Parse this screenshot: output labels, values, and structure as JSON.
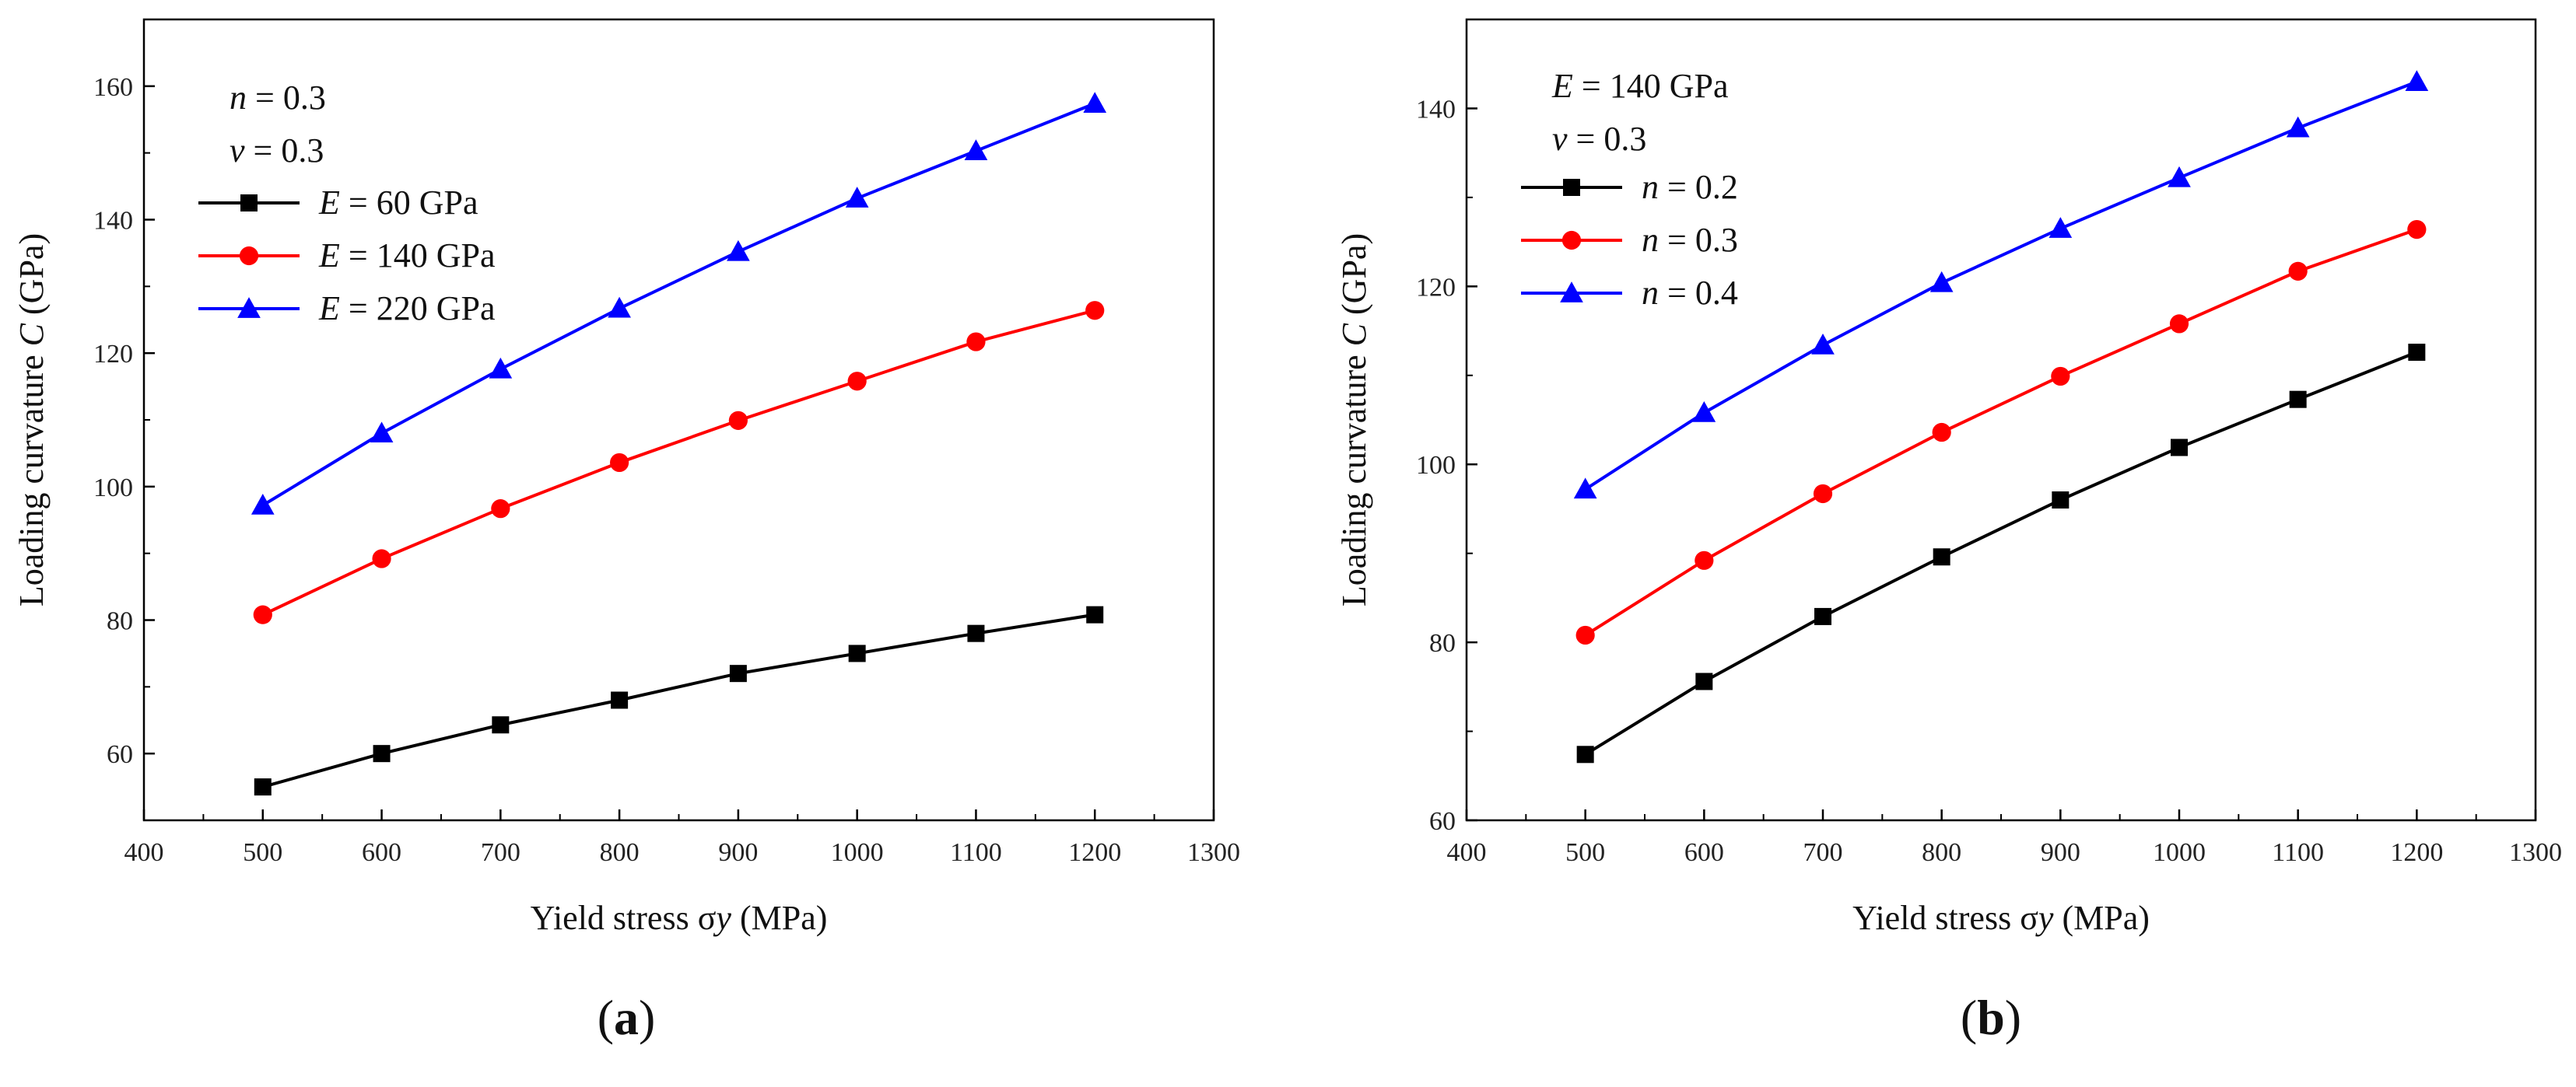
{
  "chart_data": [
    {
      "type": "line",
      "panel_label": "(a)",
      "xlabel": "Yield stress σy (MPa)",
      "ylabel": "Loading curvature C (GPa)",
      "xlim": [
        400,
        1300
      ],
      "ylim": [
        50,
        170
      ],
      "xticks": [
        400,
        500,
        600,
        700,
        800,
        900,
        1000,
        1100,
        1200,
        1300
      ],
      "yticks": [
        60,
        80,
        100,
        120,
        140,
        160
      ],
      "annotations": [
        "n = 0.3",
        "ν = 0.3"
      ],
      "legend_position": "top-left",
      "x": [
        500,
        600,
        700,
        800,
        900,
        1000,
        1100,
        1200
      ],
      "series": [
        {
          "name": "E = 60 GPa",
          "color": "#000000",
          "marker": "square",
          "values": [
            55.0,
            60.0,
            64.3,
            68.0,
            72.0,
            75.0,
            78.0,
            80.8
          ]
        },
        {
          "name": "E = 140 GPa",
          "color": "#ff0000",
          "marker": "circle",
          "values": [
            80.8,
            89.2,
            96.7,
            103.6,
            109.9,
            115.8,
            121.7,
            126.4
          ]
        },
        {
          "name": "E = 220 GPa",
          "color": "#0000ff",
          "marker": "triangle",
          "values": [
            97.2,
            108.0,
            117.6,
            126.7,
            135.2,
            143.2,
            150.3,
            157.4
          ]
        }
      ]
    },
    {
      "type": "line",
      "panel_label": "(b)",
      "xlabel": "Yield stress σy (MPa)",
      "ylabel": "Loading curvature C (GPa)",
      "xlim": [
        400,
        1300
      ],
      "ylim": [
        60,
        150
      ],
      "xticks": [
        400,
        500,
        600,
        700,
        800,
        900,
        1000,
        1100,
        1200,
        1300
      ],
      "yticks": [
        60,
        80,
        100,
        120,
        140
      ],
      "annotations": [
        "E = 140 GPa",
        "ν = 0.3"
      ],
      "legend_position": "top-left",
      "x": [
        500,
        600,
        700,
        800,
        900,
        1000,
        1100,
        1200
      ],
      "series": [
        {
          "name": "n = 0.2",
          "color": "#000000",
          "marker": "square",
          "values": [
            67.4,
            75.6,
            82.9,
            89.6,
            96.0,
            101.9,
            107.3,
            112.6
          ]
        },
        {
          "name": "n = 0.3",
          "color": "#ff0000",
          "marker": "circle",
          "values": [
            80.8,
            89.2,
            96.7,
            103.6,
            109.9,
            115.8,
            121.7,
            126.4
          ]
        },
        {
          "name": "n = 0.4",
          "color": "#0000ff",
          "marker": "triangle",
          "values": [
            97.2,
            105.8,
            113.4,
            120.4,
            126.5,
            132.2,
            137.8,
            143.0
          ]
        }
      ]
    }
  ]
}
